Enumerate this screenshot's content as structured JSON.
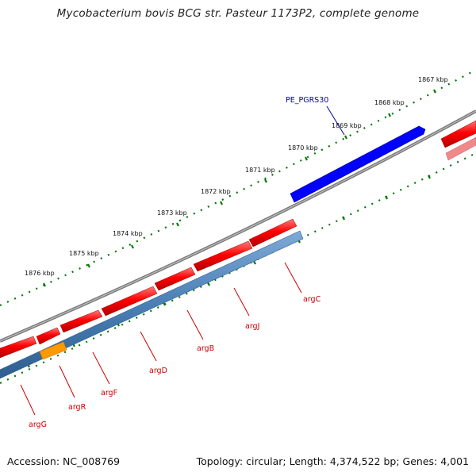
{
  "title": "Mycobacterium bovis BCG str. Pasteur 1173P2, complete genome",
  "footer": {
    "accession": "Accession: NC_008769",
    "summary": "Topology: circular; Length: 4,374,522 bp; Genes: 4,001"
  },
  "scale_labels": [
    "1867 kbp",
    "1868 kbp",
    "1869 kbp",
    "1870 kbp",
    "1871 kbp",
    "1872 kbp",
    "1873 kbp",
    "1874 kbp",
    "1875 kbp",
    "1876 kbp"
  ],
  "genes_forward": [
    "argC",
    "argJ",
    "argB",
    "argD",
    "argF",
    "argR",
    "argG"
  ],
  "genes_other": [
    "PE_PGRS30"
  ],
  "colors": {
    "forward_cds": "#ff0000",
    "gene_band": "#4a7fb5",
    "orange_feature": "#ff9900",
    "blue_feature": "#0000ff",
    "backbone": "#808080",
    "ticks": "#007700",
    "label_red": "#cc0000",
    "label_blue": "#000099"
  }
}
